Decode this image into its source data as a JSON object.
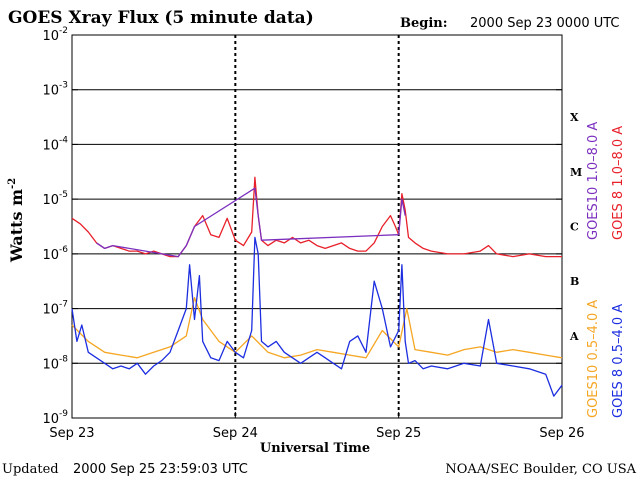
{
  "chart_data": {
    "type": "line",
    "title": "GOES Xray Flux (5 minute data)",
    "begin_label": "Begin:",
    "begin_value": "2000 Sep 23 0000 UTC",
    "xlabel": "Universal Time",
    "ylabel_main": "Watts m",
    "ylabel_exp": "-2",
    "x_ticks": [
      "Sep 23",
      "Sep 24",
      "Sep 25",
      "Sep 26"
    ],
    "xlim_days": [
      0,
      3
    ],
    "ylim_exp": [
      -9,
      -2
    ],
    "y_ticks": [
      {
        "base": "10",
        "exp": "-2",
        "value": -2
      },
      {
        "base": "10",
        "exp": "-3",
        "value": -3
      },
      {
        "base": "10",
        "exp": "-4",
        "value": -4
      },
      {
        "base": "10",
        "exp": "-5",
        "value": -5
      },
      {
        "base": "10",
        "exp": "-6",
        "value": -6
      },
      {
        "base": "10",
        "exp": "-7",
        "value": -7
      },
      {
        "base": "10",
        "exp": "-8",
        "value": -8
      },
      {
        "base": "10",
        "exp": "-9",
        "value": -9
      }
    ],
    "flare_classes": [
      {
        "label": "X",
        "value": -3.5
      },
      {
        "label": "M",
        "value": -4.5
      },
      {
        "label": "C",
        "value": -5.5
      },
      {
        "label": "B",
        "value": -6.5
      },
      {
        "label": "A",
        "value": -7.5
      }
    ],
    "gridlines_exp": [
      -3,
      -4,
      -5,
      -6,
      -7,
      -8
    ],
    "day_markers": [
      1,
      2
    ],
    "legend_right": [
      {
        "label": "GOES10 1.0–8.0 A",
        "color": "#7b2fbf"
      },
      {
        "label": "GOES 8 1.0–8.0 A",
        "color": "#e8202a"
      }
    ],
    "legend_far": [
      {
        "label": "GOES10 0.5–4.0 A",
        "color": "#f5a623"
      },
      {
        "label": "GOES 8 0.5–4.0 A",
        "color": "#1c2ee0"
      }
    ],
    "series": [
      {
        "name": "GOES 8 1.0-8.0 A",
        "color": "#e8202a",
        "x": [
          0,
          0.05,
          0.1,
          0.15,
          0.2,
          0.25,
          0.3,
          0.35,
          0.4,
          0.45,
          0.5,
          0.55,
          0.6,
          0.65,
          0.7,
          0.75,
          0.8,
          0.85,
          0.9,
          0.95,
          1.0,
          1.05,
          1.1,
          1.12,
          1.14,
          1.16,
          1.2,
          1.25,
          1.3,
          1.35,
          1.4,
          1.45,
          1.5,
          1.55,
          1.6,
          1.65,
          1.7,
          1.75,
          1.8,
          1.85,
          1.9,
          1.95,
          1.98,
          2.0,
          2.02,
          2.04,
          2.06,
          2.1,
          2.15,
          2.2,
          2.3,
          2.4,
          2.5,
          2.55,
          2.6,
          2.7,
          2.8,
          2.9,
          3.0
        ],
        "y": [
          -5.35,
          -5.45,
          -5.6,
          -5.8,
          -5.9,
          -5.85,
          -5.9,
          -5.95,
          -5.95,
          -6.0,
          -5.95,
          -6.0,
          -6.05,
          -6.05,
          -5.85,
          -5.5,
          -5.3,
          -5.65,
          -5.7,
          -5.35,
          -5.75,
          -5.85,
          -5.6,
          -4.6,
          -5.3,
          -5.75,
          -5.85,
          -5.75,
          -5.8,
          -5.7,
          -5.8,
          -5.75,
          -5.85,
          -5.9,
          -5.85,
          -5.8,
          -5.9,
          -5.95,
          -5.95,
          -5.8,
          -5.5,
          -5.3,
          -5.5,
          -5.65,
          -4.9,
          -5.2,
          -5.7,
          -5.8,
          -5.9,
          -5.95,
          -6.0,
          -6.0,
          -5.95,
          -5.85,
          -6.0,
          -6.05,
          -6.0,
          -6.05,
          -6.05
        ]
      },
      {
        "name": "GOES10 1.0-8.0 A",
        "color": "#7b2fbf",
        "x": [
          0.15,
          0.2,
          0.25,
          0.65,
          0.7,
          0.75,
          1.12,
          1.14,
          1.16,
          2.0,
          2.02,
          2.04
        ],
        "y": [
          -5.8,
          -5.9,
          -5.85,
          -6.05,
          -5.85,
          -5.5,
          -4.8,
          -5.3,
          -5.75,
          -5.65,
          -5.0,
          -5.3
        ]
      },
      {
        "name": "GOES10 0.5-4.0 A",
        "color": "#f5a623",
        "x": [
          0,
          0.1,
          0.2,
          0.3,
          0.4,
          0.5,
          0.6,
          0.7,
          0.75,
          0.8,
          0.9,
          1.0,
          1.1,
          1.2,
          1.3,
          1.4,
          1.5,
          1.6,
          1.7,
          1.8,
          1.9,
          2.0,
          2.05,
          2.1,
          2.2,
          2.3,
          2.4,
          2.5,
          2.6,
          2.7,
          2.8,
          2.9,
          3.0
        ],
        "y": [
          -7.3,
          -7.6,
          -7.8,
          -7.85,
          -7.9,
          -7.8,
          -7.7,
          -7.5,
          -6.8,
          -7.2,
          -7.6,
          -7.8,
          -7.5,
          -7.8,
          -7.9,
          -7.85,
          -7.75,
          -7.8,
          -7.85,
          -7.9,
          -7.4,
          -7.7,
          -7.0,
          -7.75,
          -7.8,
          -7.85,
          -7.75,
          -7.7,
          -7.8,
          -7.75,
          -7.8,
          -7.85,
          -7.9
        ]
      },
      {
        "name": "GOES 8 0.5-4.0 A",
        "color": "#1c2ee0",
        "x": [
          0,
          0.03,
          0.06,
          0.1,
          0.15,
          0.2,
          0.25,
          0.3,
          0.35,
          0.4,
          0.45,
          0.5,
          0.55,
          0.6,
          0.65,
          0.7,
          0.72,
          0.75,
          0.78,
          0.8,
          0.85,
          0.9,
          0.95,
          1.0,
          1.05,
          1.1,
          1.12,
          1.14,
          1.16,
          1.2,
          1.25,
          1.3,
          1.35,
          1.4,
          1.45,
          1.5,
          1.55,
          1.6,
          1.65,
          1.7,
          1.75,
          1.8,
          1.85,
          1.9,
          1.95,
          2.0,
          2.02,
          2.04,
          2.06,
          2.1,
          2.15,
          2.2,
          2.3,
          2.4,
          2.5,
          2.55,
          2.6,
          2.7,
          2.8,
          2.9,
          2.95,
          3.0
        ],
        "y": [
          -7.0,
          -7.6,
          -7.3,
          -7.8,
          -7.9,
          -8.0,
          -8.1,
          -8.05,
          -8.1,
          -8.0,
          -8.2,
          -8.05,
          -7.95,
          -7.8,
          -7.4,
          -7.0,
          -6.2,
          -7.2,
          -6.4,
          -7.6,
          -7.9,
          -7.95,
          -7.6,
          -7.8,
          -7.9,
          -7.4,
          -5.7,
          -6.0,
          -7.6,
          -7.7,
          -7.6,
          -7.8,
          -7.9,
          -8.0,
          -7.9,
          -7.8,
          -7.9,
          -8.0,
          -8.1,
          -7.6,
          -7.5,
          -7.8,
          -6.5,
          -7.0,
          -7.7,
          -7.4,
          -6.2,
          -7.6,
          -8.0,
          -7.95,
          -8.1,
          -8.05,
          -8.1,
          -8.0,
          -8.05,
          -7.2,
          -8.0,
          -8.05,
          -8.1,
          -8.2,
          -8.6,
          -8.4
        ]
      }
    ]
  },
  "footer": {
    "updated_label": "Updated",
    "updated_value": "2000 Sep 25 23:59:03 UTC",
    "credit": "NOAA/SEC Boulder, CO USA"
  }
}
